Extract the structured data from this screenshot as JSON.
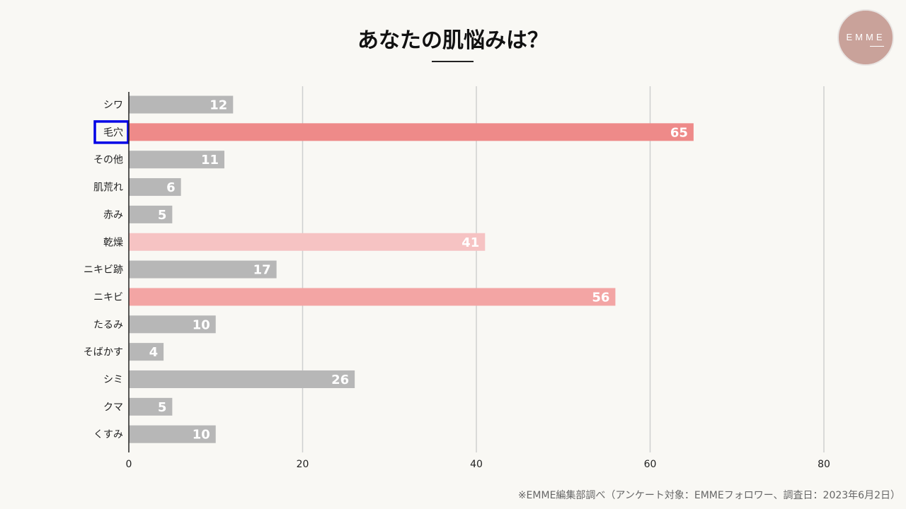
{
  "logo_text": "EMME",
  "footnote": "※EMME編集部調べ（アンケート対象：EMMEフォロワー、調査日：2023年6月2日）",
  "chart_data": {
    "type": "bar",
    "orientation": "horizontal",
    "title": "あなたの肌悩みは？",
    "categories": [
      "シワ",
      "毛穴",
      "その他",
      "肌荒れ",
      "赤み",
      "乾燥",
      "ニキビ跡",
      "ニキビ",
      "たるみ",
      "そばかす",
      "シミ",
      "クマ",
      "くすみ"
    ],
    "values": [
      12,
      65,
      11,
      6,
      5,
      41,
      17,
      56,
      10,
      4,
      26,
      5,
      10
    ],
    "colors": [
      "#b7b7b7",
      "#ee8a89",
      "#b7b7b7",
      "#b7b7b7",
      "#b7b7b7",
      "#f6c3c3",
      "#b7b7b7",
      "#f3a5a4",
      "#b7b7b7",
      "#b7b7b7",
      "#b7b7b7",
      "#b7b7b7",
      "#b7b7b7"
    ],
    "highlighted_category": "毛穴",
    "highlight_color": "#0000e6",
    "xlim": [
      0,
      80
    ],
    "xticks": [
      0,
      20,
      40,
      60,
      80
    ],
    "grid": true,
    "data_labels": true,
    "xlabel": "",
    "ylabel": ""
  }
}
